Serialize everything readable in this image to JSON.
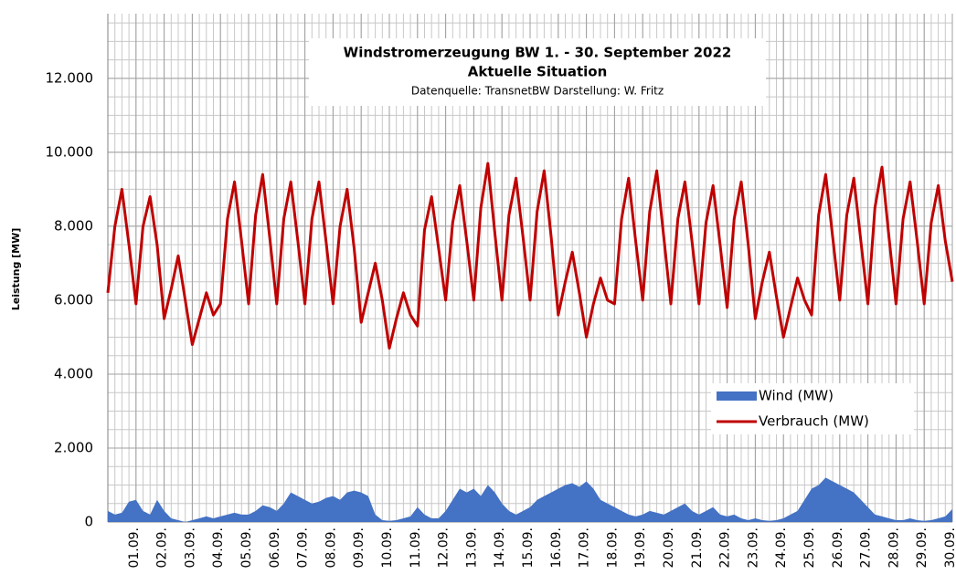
{
  "chart_data": {
    "type": "line",
    "title": "Windstromerzeugung BW 1. - 30. September 2022",
    "subtitle": "Aktuelle Situation",
    "annotation": "Datenquelle: TransnetBW  Darstellung: W. Fritz",
    "y_label": "Leistung [MW]",
    "x": [
      0,
      0.25,
      0.5,
      0.75,
      1,
      1.25,
      1.5,
      1.75,
      2,
      2.25,
      2.5,
      2.75,
      3,
      3.25,
      3.5,
      3.75,
      4,
      4.25,
      4.5,
      4.75,
      5,
      5.25,
      5.5,
      5.75,
      6,
      6.25,
      6.5,
      6.75,
      7,
      7.25,
      7.5,
      7.75,
      8,
      8.25,
      8.5,
      8.75,
      9,
      9.25,
      9.5,
      9.75,
      10,
      10.25,
      10.5,
      10.75,
      11,
      11.25,
      11.5,
      11.75,
      12,
      12.25,
      12.5,
      12.75,
      13,
      13.25,
      13.5,
      13.75,
      14,
      14.25,
      14.5,
      14.75,
      15,
      15.25,
      15.5,
      15.75,
      16,
      16.25,
      16.5,
      16.75,
      17,
      17.25,
      17.5,
      17.75,
      18,
      18.25,
      18.5,
      18.75,
      19,
      19.25,
      19.5,
      19.75,
      20,
      20.25,
      20.5,
      20.75,
      21,
      21.25,
      21.5,
      21.75,
      22,
      22.25,
      22.5,
      22.75,
      23,
      23.25,
      23.5,
      23.75,
      24,
      24.25,
      24.5,
      24.75,
      25,
      25.25,
      25.5,
      25.75,
      26,
      26.25,
      26.5,
      26.75,
      27,
      27.25,
      27.5,
      27.75,
      28,
      28.25,
      28.5,
      28.75,
      29,
      29.25,
      29.5,
      29.75,
      30
    ],
    "series": [
      {
        "name": "Wind (MW)",
        "color": "#4472c4",
        "kind": "area",
        "values": [
          300,
          200,
          250,
          550,
          600,
          300,
          200,
          600,
          300,
          100,
          50,
          0,
          50,
          100,
          150,
          100,
          150,
          200,
          250,
          200,
          200,
          300,
          450,
          400,
          300,
          500,
          800,
          700,
          600,
          500,
          550,
          650,
          700,
          600,
          800,
          850,
          800,
          700,
          200,
          50,
          30,
          50,
          100,
          150,
          400,
          200,
          100,
          100,
          300,
          600,
          900,
          800,
          900,
          700,
          1000,
          800,
          500,
          300,
          200,
          300,
          400,
          600,
          700,
          800,
          900,
          1000,
          1050,
          950,
          1100,
          900,
          600,
          500,
          400,
          300,
          200,
          150,
          200,
          300,
          250,
          200,
          300,
          400,
          500,
          300,
          200,
          300,
          400,
          200,
          150,
          200,
          100,
          50,
          100,
          50,
          30,
          50,
          100,
          200,
          300,
          600,
          900,
          1000,
          1200,
          1100,
          1000,
          900,
          800,
          600,
          400,
          200,
          150,
          100,
          50,
          50,
          100,
          50,
          30,
          50,
          100,
          150,
          350
        ]
      },
      {
        "name": "Verbrauch (MW)",
        "color": "#c00000",
        "kind": "line",
        "values": [
          6200,
          8000,
          9000,
          7500,
          5900,
          8000,
          8800,
          7500,
          5500,
          6300,
          7200,
          6000,
          4800,
          5500,
          6200,
          5600,
          5900,
          8200,
          9200,
          7600,
          5900,
          8300,
          9400,
          7700,
          5900,
          8200,
          9200,
          7600,
          5900,
          8200,
          9200,
          7600,
          5900,
          8000,
          9000,
          7400,
          5400,
          6200,
          7000,
          6000,
          4700,
          5500,
          6200,
          5600,
          5300,
          7900,
          8800,
          7400,
          6000,
          8100,
          9100,
          7600,
          6000,
          8500,
          9700,
          7800,
          6000,
          8300,
          9300,
          7700,
          6000,
          8400,
          9500,
          7700,
          5600,
          6500,
          7300,
          6200,
          5000,
          5900,
          6600,
          6000,
          5900,
          8200,
          9300,
          7600,
          6000,
          8400,
          9500,
          7700,
          5900,
          8200,
          9200,
          7600,
          5900,
          8100,
          9100,
          7500,
          5800,
          8200,
          9200,
          7500,
          5500,
          6500,
          7300,
          6100,
          5000,
          5800,
          6600,
          6000,
          5600,
          8300,
          9400,
          7700,
          6000,
          8300,
          9300,
          7600,
          5900,
          8500,
          9600,
          7700,
          5900,
          8200,
          9200,
          7600,
          5900,
          8100,
          9100,
          7600,
          6500
        ]
      }
    ],
    "xlim": [
      0,
      30
    ],
    "xticks": [
      {
        "value": 1,
        "label": "01.09."
      },
      {
        "value": 2,
        "label": "02.09."
      },
      {
        "value": 3,
        "label": "03.09."
      },
      {
        "value": 4,
        "label": "04.09."
      },
      {
        "value": 5,
        "label": "05.09."
      },
      {
        "value": 6,
        "label": "06.09."
      },
      {
        "value": 7,
        "label": "07.09."
      },
      {
        "value": 8,
        "label": "08.09."
      },
      {
        "value": 9,
        "label": "09.09."
      },
      {
        "value": 10,
        "label": "10.09."
      },
      {
        "value": 11,
        "label": "11.09."
      },
      {
        "value": 12,
        "label": "12.09."
      },
      {
        "value": 13,
        "label": "13.09."
      },
      {
        "value": 14,
        "label": "14.09."
      },
      {
        "value": 15,
        "label": "15.09."
      },
      {
        "value": 16,
        "label": "16.09."
      },
      {
        "value": 17,
        "label": "17.09."
      },
      {
        "value": 18,
        "label": "18.09."
      },
      {
        "value": 19,
        "label": "19.09."
      },
      {
        "value": 20,
        "label": "20.09."
      },
      {
        "value": 21,
        "label": "21.09."
      },
      {
        "value": 22,
        "label": "22.09."
      },
      {
        "value": 23,
        "label": "23.09."
      },
      {
        "value": 24,
        "label": "24.09."
      },
      {
        "value": 25,
        "label": "25.09."
      },
      {
        "value": 26,
        "label": "26.09."
      },
      {
        "value": 27,
        "label": "27.09."
      },
      {
        "value": 28,
        "label": "28.09."
      },
      {
        "value": 29,
        "label": "29.09."
      },
      {
        "value": 30,
        "label": "30.09."
      }
    ],
    "ylim": [
      0,
      13750
    ],
    "yticks": [
      0,
      {
        "value": 2000,
        "label": "2.000"
      },
      {
        "value": 4000,
        "label": "4.000"
      },
      {
        "value": 6000,
        "label": "6.000"
      },
      {
        "value": 8000,
        "label": "8.000"
      },
      {
        "value": 10000,
        "label": "10.000"
      },
      {
        "value": 12000,
        "label": "12.000"
      }
    ],
    "grid": true,
    "legend": "lower right"
  }
}
